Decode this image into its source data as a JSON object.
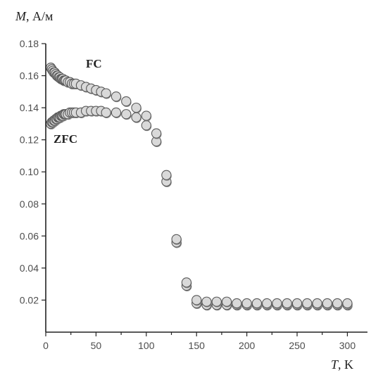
{
  "chart_data": {
    "type": "scatter",
    "title": "",
    "ylabel": {
      "symbol": "M",
      "unit": ", А/м"
    },
    "xlabel": {
      "symbol": "T",
      "unit": ", K"
    },
    "xlim": [
      0,
      320
    ],
    "ylim": [
      0,
      0.18
    ],
    "x_ticks": [
      0,
      50,
      100,
      150,
      200,
      250,
      300
    ],
    "x_tick_labels": [
      "0",
      "50",
      "100",
      "150",
      "200",
      "250",
      "300"
    ],
    "y_ticks": [
      0.02,
      0.04,
      0.06,
      0.08,
      0.1,
      0.12,
      0.14,
      0.16,
      0.18
    ],
    "y_tick_labels": [
      "0.02",
      "0.04",
      "0.06",
      "0.08",
      "0.10",
      "0.12",
      "0.14",
      "0.16",
      "0.18"
    ],
    "grid": false,
    "series": [
      {
        "name": "FC",
        "x": [
          5,
          6,
          7,
          8,
          9,
          10,
          11,
          12,
          13,
          14,
          15,
          16,
          17,
          18,
          19,
          20,
          22,
          24,
          26,
          28,
          30,
          35,
          40,
          45,
          50,
          55,
          60,
          70,
          80,
          90,
          100,
          110,
          120,
          130,
          140,
          150,
          160,
          170,
          180,
          190,
          200,
          210,
          220,
          230,
          240,
          250,
          260,
          270,
          280,
          290,
          300
        ],
        "y": [
          0.165,
          0.164,
          0.163,
          0.162,
          0.162,
          0.161,
          0.16,
          0.16,
          0.159,
          0.159,
          0.158,
          0.158,
          0.158,
          0.157,
          0.157,
          0.157,
          0.156,
          0.156,
          0.155,
          0.155,
          0.155,
          0.154,
          0.153,
          0.152,
          0.151,
          0.15,
          0.149,
          0.147,
          0.144,
          0.14,
          0.135,
          0.124,
          0.098,
          0.058,
          0.031,
          0.02,
          0.019,
          0.019,
          0.019,
          0.018,
          0.018,
          0.018,
          0.018,
          0.018,
          0.018,
          0.018,
          0.018,
          0.018,
          0.018,
          0.018,
          0.018
        ]
      },
      {
        "name": "ZFC",
        "x": [
          5,
          6,
          7,
          8,
          9,
          10,
          11,
          12,
          13,
          14,
          15,
          16,
          17,
          18,
          19,
          20,
          22,
          24,
          26,
          28,
          30,
          35,
          40,
          45,
          50,
          55,
          60,
          70,
          80,
          90,
          100,
          110,
          120,
          130,
          140,
          150,
          160,
          170,
          180,
          190,
          200,
          210,
          220,
          230,
          240,
          250,
          260,
          270,
          280,
          290,
          300
        ],
        "y": [
          0.13,
          0.131,
          0.131,
          0.132,
          0.132,
          0.133,
          0.133,
          0.134,
          0.134,
          0.134,
          0.135,
          0.135,
          0.135,
          0.136,
          0.136,
          0.136,
          0.136,
          0.137,
          0.137,
          0.137,
          0.137,
          0.137,
          0.138,
          0.138,
          0.138,
          0.138,
          0.137,
          0.137,
          0.136,
          0.134,
          0.129,
          0.119,
          0.094,
          0.056,
          0.029,
          0.018,
          0.017,
          0.017,
          0.017,
          0.017,
          0.017,
          0.017,
          0.017,
          0.017,
          0.017,
          0.017,
          0.017,
          0.017,
          0.017,
          0.017,
          0.017
        ]
      }
    ]
  }
}
